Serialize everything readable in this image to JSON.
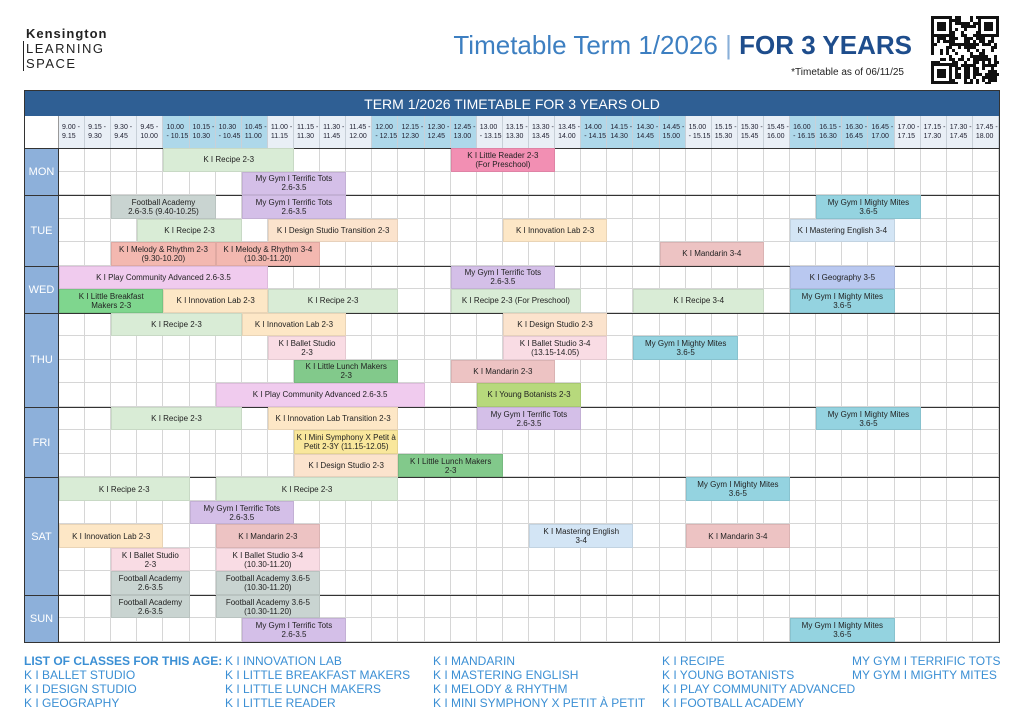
{
  "header": {
    "logo": [
      "Kensington",
      "LEARNING",
      "SPACE"
    ],
    "title": "Timetable Term 1/2026",
    "separator": "|",
    "title_strong": "FOR 3 YEARS",
    "note": "*Timetable as of 06/11/25"
  },
  "table": {
    "title": "TERM 1/2026 TIMETABLE FOR 3 YEARS OLD",
    "slots": [
      [
        "9.00 -",
        "9.15"
      ],
      [
        "9.15 -",
        "9.30"
      ],
      [
        "9.30 -",
        "9.45"
      ],
      [
        "9.45 -",
        "10.00"
      ],
      [
        "10.00",
        "- 10.15"
      ],
      [
        "10.15 -",
        "10.30"
      ],
      [
        "10.30",
        "- 10.45"
      ],
      [
        "10.45 -",
        "11.00"
      ],
      [
        "11.00 -",
        "11.15"
      ],
      [
        "11.15 -",
        "11.30"
      ],
      [
        "11.30 -",
        "11.45"
      ],
      [
        "11.45 -",
        "12.00"
      ],
      [
        "12.00",
        "- 12.15"
      ],
      [
        "12.15 -",
        "12.30"
      ],
      [
        "12.30 -",
        "12.45"
      ],
      [
        "12.45 -",
        "13.00"
      ],
      [
        "13.00",
        "- 13.15"
      ],
      [
        "13.15 -",
        "13.30"
      ],
      [
        "13.30 -",
        "13.45"
      ],
      [
        "13.45 -",
        "14.00"
      ],
      [
        "14.00",
        "- 14.15"
      ],
      [
        "14.15 -",
        "14.30"
      ],
      [
        "14.30 -",
        "14.45"
      ],
      [
        "14.45 -",
        "15.00"
      ],
      [
        "15.00",
        "- 15.15"
      ],
      [
        "15.15 -",
        "15.30"
      ],
      [
        "15.30 -",
        "15.45"
      ],
      [
        "15.45 -",
        "16.00"
      ],
      [
        "16.00",
        "- 16.15"
      ],
      [
        "16.15 -",
        "16.30"
      ],
      [
        "16.30 -",
        "16.45"
      ],
      [
        "16.45 -",
        "17.00"
      ],
      [
        "17.00 -",
        "17.15"
      ],
      [
        "17.15 -",
        "17.30"
      ],
      [
        "17.30 -",
        "17.45"
      ],
      [
        "17.45 -",
        "18.00"
      ]
    ],
    "days": [
      {
        "name": "MON",
        "rows": 2,
        "classes": [
          {
            "row": 0,
            "from": 4,
            "to": 9,
            "lines": [
              "K I Recipe 2-3"
            ],
            "color": "#d9ecd6"
          },
          {
            "row": 0,
            "from": 15,
            "to": 19,
            "lines": [
              "K I Little Reader 2-3",
              "(For Preschool)"
            ],
            "color": "#f28fb3"
          },
          {
            "row": 1,
            "from": 7,
            "to": 11,
            "lines": [
              "My Gym I Terrific Tots",
              "2.6-3.5"
            ],
            "color": "#d4bfe8"
          }
        ]
      },
      {
        "name": "TUE",
        "rows": 3,
        "classes": [
          {
            "row": 0,
            "from": 2,
            "to": 6,
            "lines": [
              "Football Academy",
              "2.6-3.5 (9.40-10.25)"
            ],
            "color": "#c9d4d1"
          },
          {
            "row": 0,
            "from": 7,
            "to": 11,
            "lines": [
              "My Gym I Terrific Tots",
              "2.6-3.5"
            ],
            "color": "#d4bfe8"
          },
          {
            "row": 0,
            "from": 29,
            "to": 33,
            "lines": [
              "My Gym I Mighty Mites",
              "3.6-5"
            ],
            "color": "#94d3e0"
          },
          {
            "row": 1,
            "from": 3,
            "to": 7,
            "lines": [
              "K I Recipe 2-3"
            ],
            "color": "#d9ecd6"
          },
          {
            "row": 1,
            "from": 8,
            "to": 13,
            "lines": [
              "K I Design Studio Transition 2-3"
            ],
            "color": "#fbe3cd"
          },
          {
            "row": 1,
            "from": 17,
            "to": 21,
            "lines": [
              "K I Innovation Lab 2-3"
            ],
            "color": "#fde7c6"
          },
          {
            "row": 1,
            "from": 28,
            "to": 32,
            "lines": [
              "K I Mastering English 3-4"
            ],
            "color": "#d3e5f5"
          },
          {
            "row": 2,
            "from": 2,
            "to": 6,
            "lines": [
              "K I Melody & Rhythm 2-3",
              "(9.30-10.20)"
            ],
            "color": "#f3b8b0"
          },
          {
            "row": 2,
            "from": 6,
            "to": 10,
            "lines": [
              "K I Melody & Rhythm 3-4",
              "(10.30-11.20)"
            ],
            "color": "#f3b8b0"
          },
          {
            "row": 2,
            "from": 23,
            "to": 27,
            "lines": [
              "K I Mandarin 3-4"
            ],
            "color": "#edc3c3"
          }
        ]
      },
      {
        "name": "WED",
        "rows": 2,
        "classes": [
          {
            "row": 0,
            "from": 0,
            "to": 8,
            "lines": [
              "K I Play Community Advanced 2.6-3.5"
            ],
            "color": "#f0cbee"
          },
          {
            "row": 0,
            "from": 15,
            "to": 19,
            "lines": [
              "My Gym I Terrific Tots",
              "2.6-3.5"
            ],
            "color": "#d4bfe8"
          },
          {
            "row": 0,
            "from": 28,
            "to": 32,
            "lines": [
              "K I Geography 3-5"
            ],
            "color": "#b9c8f0"
          },
          {
            "row": 1,
            "from": 0,
            "to": 4,
            "lines": [
              "K I Little Breakfast",
              "Makers 2-3"
            ],
            "color": "#7fd68e"
          },
          {
            "row": 1,
            "from": 4,
            "to": 8,
            "lines": [
              "K I Innovation Lab 2-3"
            ],
            "color": "#fde7c6"
          },
          {
            "row": 1,
            "from": 8,
            "to": 13,
            "lines": [
              "K I Recipe 2-3"
            ],
            "color": "#d9ecd6"
          },
          {
            "row": 1,
            "from": 15,
            "to": 20,
            "lines": [
              "K I Recipe 2-3 (For Preschool)"
            ],
            "color": "#d9ecd6"
          },
          {
            "row": 1,
            "from": 22,
            "to": 27,
            "lines": [
              "K I Recipe 3-4"
            ],
            "color": "#d9ecd6"
          },
          {
            "row": 1,
            "from": 28,
            "to": 32,
            "lines": [
              "My Gym I Mighty Mites",
              "3.6-5"
            ],
            "color": "#94d3e0"
          }
        ]
      },
      {
        "name": "THU",
        "rows": 4,
        "classes": [
          {
            "row": 0,
            "from": 2,
            "to": 7,
            "lines": [
              "K I Recipe 2-3"
            ],
            "color": "#d9ecd6"
          },
          {
            "row": 0,
            "from": 7,
            "to": 11,
            "lines": [
              "K I Innovation Lab 2-3"
            ],
            "color": "#fde7c6"
          },
          {
            "row": 0,
            "from": 17,
            "to": 21,
            "lines": [
              "K I Design Studio 2-3"
            ],
            "color": "#fbe3cd"
          },
          {
            "row": 1,
            "from": 8,
            "to": 11,
            "lines": [
              "K I Ballet Studio",
              "2-3"
            ],
            "color": "#f9dce4"
          },
          {
            "row": 1,
            "from": 17,
            "to": 21,
            "lines": [
              "K I Ballet Studio 3-4",
              "(13.15-14.05)"
            ],
            "color": "#f9dce4"
          },
          {
            "row": 1,
            "from": 22,
            "to": 26,
            "lines": [
              "My Gym I Mighty Mites",
              "3.6-5"
            ],
            "color": "#94d3e0"
          },
          {
            "row": 2,
            "from": 9,
            "to": 13,
            "lines": [
              "K I Little Lunch Makers",
              "2-3"
            ],
            "color": "#82c98b"
          },
          {
            "row": 2,
            "from": 15,
            "to": 19,
            "lines": [
              "K I Mandarin 2-3"
            ],
            "color": "#edc3c3"
          },
          {
            "row": 3,
            "from": 6,
            "to": 14,
            "lines": [
              "K I Play Community Advanced 2.6-3.5"
            ],
            "color": "#f0cbee"
          },
          {
            "row": 3,
            "from": 16,
            "to": 20,
            "lines": [
              "K I Young Botanists 2-3"
            ],
            "color": "#b7d97c"
          }
        ]
      },
      {
        "name": "FRI",
        "rows": 3,
        "classes": [
          {
            "row": 0,
            "from": 2,
            "to": 7,
            "lines": [
              "K I Recipe 2-3"
            ],
            "color": "#d9ecd6"
          },
          {
            "row": 0,
            "from": 8,
            "to": 13,
            "lines": [
              "K I Innovation Lab Transition 2-3"
            ],
            "color": "#fde7c6"
          },
          {
            "row": 0,
            "from": 16,
            "to": 20,
            "lines": [
              "My Gym I Terrific Tots",
              "2.6-3.5"
            ],
            "color": "#d4bfe8"
          },
          {
            "row": 0,
            "from": 29,
            "to": 33,
            "lines": [
              "My Gym I Mighty Mites",
              "3.6-5"
            ],
            "color": "#94d3e0"
          },
          {
            "row": 1,
            "from": 9,
            "to": 13,
            "lines": [
              "K I Mini Symphony X Petit à",
              "Petit 2-3Y (11.15-12.05)"
            ],
            "color": "#f9e79c"
          },
          {
            "row": 2,
            "from": 9,
            "to": 13,
            "lines": [
              "K I Design Studio 2-3"
            ],
            "color": "#fbe3cd"
          },
          {
            "row": 2,
            "from": 13,
            "to": 17,
            "lines": [
              "K I Little Lunch Makers",
              "2-3"
            ],
            "color": "#82c98b"
          }
        ]
      },
      {
        "name": "SAT",
        "rows": 5,
        "classes": [
          {
            "row": 0,
            "from": 0,
            "to": 5,
            "lines": [
              "K I Recipe 2-3"
            ],
            "color": "#d9ecd6"
          },
          {
            "row": 0,
            "from": 6,
            "to": 13,
            "lines": [
              "K I Recipe 2-3"
            ],
            "color": "#d9ecd6"
          },
          {
            "row": 0,
            "from": 24,
            "to": 28,
            "lines": [
              "My Gym I Mighty Mites",
              "3.6-5"
            ],
            "color": "#94d3e0"
          },
          {
            "row": 1,
            "from": 5,
            "to": 9,
            "lines": [
              "My Gym I Terrific Tots",
              "2.6-3.5"
            ],
            "color": "#d4bfe8"
          },
          {
            "row": 2,
            "from": 0,
            "to": 4,
            "lines": [
              "K I Innovation Lab 2-3"
            ],
            "color": "#fde7c6"
          },
          {
            "row": 2,
            "from": 6,
            "to": 10,
            "lines": [
              "K I Mandarin 2-3"
            ],
            "color": "#edc3c3"
          },
          {
            "row": 2,
            "from": 18,
            "to": 22,
            "lines": [
              "K I Mastering English",
              "3-4"
            ],
            "color": "#d3e5f5"
          },
          {
            "row": 2,
            "from": 24,
            "to": 28,
            "lines": [
              "K I Mandarin 3-4"
            ],
            "color": "#edc3c3"
          },
          {
            "row": 3,
            "from": 2,
            "to": 5,
            "lines": [
              "K I Ballet Studio",
              "2-3"
            ],
            "color": "#f9dce4"
          },
          {
            "row": 3,
            "from": 6,
            "to": 10,
            "lines": [
              "K I Ballet Studio 3-4",
              "(10.30-11.20)"
            ],
            "color": "#f9dce4"
          },
          {
            "row": 4,
            "from": 2,
            "to": 5,
            "lines": [
              "Football Academy",
              "2.6-3.5"
            ],
            "color": "#c9d4d1"
          },
          {
            "row": 4,
            "from": 6,
            "to": 10,
            "lines": [
              "Football Academy 3.6-5",
              "(10.30-11.20)"
            ],
            "color": "#c9d4d1"
          }
        ]
      },
      {
        "name": "SUN",
        "rows": 2,
        "classes": [
          {
            "row": 0,
            "from": 2,
            "to": 5,
            "lines": [
              "Football Academy",
              "2.6-3.5"
            ],
            "color": "#c9d4d1"
          },
          {
            "row": 0,
            "from": 6,
            "to": 10,
            "lines": [
              "Football Academy 3.6-5",
              "(10.30-11.20)"
            ],
            "color": "#c9d4d1"
          },
          {
            "row": 1,
            "from": 7,
            "to": 11,
            "lines": [
              "My Gym I Terrific Tots",
              "2.6-3.5"
            ],
            "color": "#d4bfe8"
          },
          {
            "row": 1,
            "from": 28,
            "to": 32,
            "lines": [
              "My Gym I Mighty Mites",
              "3.6-5"
            ],
            "color": "#94d3e0"
          }
        ]
      }
    ]
  },
  "footer": {
    "columns": [
      [
        "LIST OF CLASSES FOR THIS AGE:",
        "K I BALLET STUDIO",
        "K I DESIGN STUDIO",
        "K I GEOGRAPHY"
      ],
      [
        "K I INNOVATION LAB",
        "K I LITTLE BREAKFAST MAKERS",
        "K I LITTLE LUNCH MAKERS",
        "K I LITTLE READER"
      ],
      [
        "K I MANDARIN",
        "K I MASTERING ENGLISH",
        "K I MELODY & RHYTHM",
        "K I MINI SYMPHONY X PETIT À PETIT"
      ],
      [
        "K I RECIPE",
        "K I YOUNG BOTANISTS",
        "K I PLAY COMMUNITY ADVANCED",
        "K I FOOTBALL ACADEMY"
      ],
      [
        "MY GYM I TERRIFIC TOTS",
        "MY GYM I MIGHTY MITES"
      ]
    ]
  }
}
